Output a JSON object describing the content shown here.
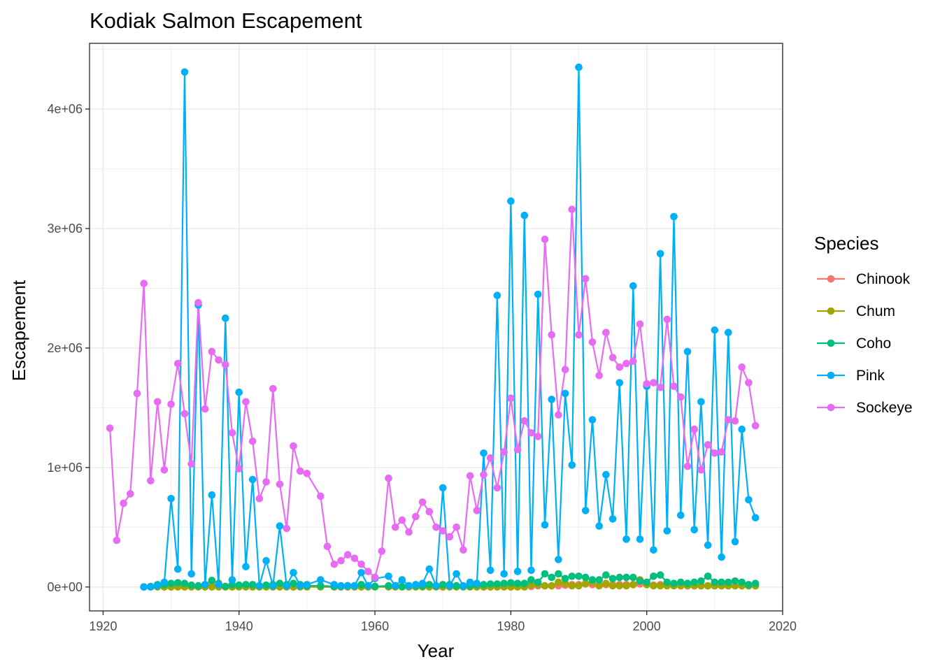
{
  "chart_data": {
    "type": "line",
    "title": "Kodiak Salmon Escapement",
    "xlabel": "Year",
    "ylabel": "Escapement",
    "xlim": [
      1918,
      2020
    ],
    "ylim": [
      -200000,
      4550000
    ],
    "x_ticks": [
      1920,
      1940,
      1960,
      1980,
      2000,
      2020
    ],
    "x_tick_labels": [
      "1920",
      "1940",
      "1960",
      "1980",
      "2000",
      "2020"
    ],
    "y_ticks": [
      0,
      1000000,
      2000000,
      3000000,
      4000000
    ],
    "y_tick_labels": [
      "0e+00",
      "1e+06",
      "2e+06",
      "3e+06",
      "4e+06"
    ],
    "grid": true,
    "markers": true,
    "legend": {
      "title": "Species",
      "placement": "right"
    },
    "series": [
      {
        "name": "Chinook",
        "color": "#F8766D",
        "x": [
          1926,
          1927,
          1928,
          1929,
          1930,
          1931,
          1932,
          1933,
          1934,
          1935,
          1936,
          1937,
          1938,
          1939,
          1940,
          1941,
          1942,
          1943,
          1944,
          1945,
          1946,
          1947,
          1948,
          1949,
          1950,
          1952,
          1954,
          1955,
          1956,
          1957,
          1958,
          1959,
          1960,
          1962,
          1963,
          1964,
          1965,
          1966,
          1967,
          1968,
          1969,
          1970,
          1971,
          1972,
          1973,
          1974,
          1975,
          1976,
          1977,
          1978,
          1979,
          1980,
          1981,
          1982,
          1983,
          1984,
          1985,
          1986,
          1987,
          1988,
          1989,
          1990,
          1991,
          1992,
          1993,
          1994,
          1995,
          1996,
          1997,
          1998,
          1999,
          2000,
          2001,
          2002,
          2003,
          2004,
          2005,
          2006,
          2007,
          2008,
          2009,
          2010,
          2011,
          2012,
          2013,
          2014,
          2015,
          2016
        ],
        "y": [
          0,
          1000,
          10000,
          5000,
          5000,
          5000,
          5000,
          5000,
          5000,
          5000,
          10000,
          5000,
          5000,
          10000,
          10000,
          10000,
          10000,
          5000,
          5000,
          5000,
          5000,
          5000,
          5000,
          5000,
          5000,
          5000,
          5000,
          5000,
          5000,
          5000,
          5000,
          5000,
          5000,
          5000,
          5000,
          5000,
          5000,
          5000,
          5000,
          5000,
          5000,
          5000,
          5000,
          5000,
          5000,
          5000,
          5000,
          5000,
          5000,
          5000,
          5000,
          5000,
          5000,
          5000,
          5000,
          10000,
          10000,
          10000,
          10000,
          15000,
          20000,
          20000,
          25000,
          20000,
          15000,
          20000,
          20000,
          20000,
          20000,
          20000,
          25000,
          20000,
          15000,
          20000,
          15000,
          15000,
          10000,
          10000,
          10000,
          10000,
          10000,
          10000,
          10000,
          10000,
          10000,
          10000,
          10000,
          10000
        ]
      },
      {
        "name": "Chum",
        "color": "#A3A500",
        "x": [
          1926,
          1927,
          1928,
          1929,
          1930,
          1931,
          1932,
          1933,
          1934,
          1935,
          1936,
          1937,
          1938,
          1939,
          1940,
          1941,
          1942,
          1943,
          1944,
          1945,
          1946,
          1947,
          1948,
          1949,
          1950,
          1952,
          1954,
          1955,
          1956,
          1957,
          1958,
          1959,
          1960,
          1962,
          1963,
          1964,
          1965,
          1966,
          1967,
          1968,
          1969,
          1970,
          1971,
          1972,
          1973,
          1974,
          1975,
          1976,
          1977,
          1978,
          1979,
          1980,
          1981,
          1982,
          1983,
          1984,
          1985,
          1986,
          1987,
          1988,
          1989,
          1990,
          1991,
          1992,
          1993,
          1994,
          1995,
          1996,
          1997,
          1998,
          1999,
          2000,
          2001,
          2002,
          2003,
          2004,
          2005,
          2006,
          2007,
          2008,
          2009,
          2010,
          2011,
          2012,
          2013,
          2014,
          2015,
          2016
        ],
        "y": [
          0,
          0,
          0,
          0,
          0,
          0,
          0,
          0,
          0,
          0,
          0,
          0,
          0,
          0,
          0,
          0,
          0,
          0,
          0,
          0,
          0,
          0,
          0,
          0,
          0,
          0,
          0,
          0,
          0,
          0,
          0,
          0,
          0,
          0,
          0,
          0,
          0,
          0,
          0,
          0,
          0,
          0,
          0,
          0,
          0,
          0,
          0,
          0,
          0,
          0,
          0,
          0,
          0,
          0,
          20000,
          20000,
          10000,
          10000,
          40000,
          30000,
          10000,
          10000,
          30000,
          40000,
          10000,
          30000,
          10000,
          10000,
          10000,
          20000,
          60000,
          20000,
          10000,
          10000,
          10000,
          10000,
          10000,
          10000,
          10000,
          10000,
          10000,
          10000,
          10000,
          10000,
          10000,
          10000,
          10000,
          10000
        ]
      },
      {
        "name": "Coho",
        "color": "#00BF7D",
        "x": [
          1926,
          1927,
          1928,
          1929,
          1930,
          1931,
          1932,
          1933,
          1934,
          1935,
          1936,
          1937,
          1938,
          1939,
          1940,
          1941,
          1942,
          1943,
          1944,
          1945,
          1946,
          1947,
          1948,
          1949,
          1950,
          1952,
          1954,
          1955,
          1956,
          1957,
          1958,
          1959,
          1960,
          1962,
          1963,
          1964,
          1965,
          1966,
          1967,
          1968,
          1969,
          1970,
          1971,
          1972,
          1973,
          1974,
          1975,
          1976,
          1977,
          1978,
          1979,
          1980,
          1981,
          1982,
          1983,
          1984,
          1985,
          1986,
          1987,
          1988,
          1989,
          1990,
          1991,
          1992,
          1993,
          1994,
          1995,
          1996,
          1997,
          1998,
          1999,
          2000,
          2001,
          2002,
          2003,
          2004,
          2005,
          2006,
          2007,
          2008,
          2009,
          2010,
          2011,
          2012,
          2013,
          2014,
          2015,
          2016
        ],
        "y": [
          0,
          5000,
          20000,
          20000,
          30000,
          35000,
          30000,
          15000,
          10000,
          20000,
          55000,
          30000,
          5000,
          20000,
          15000,
          20000,
          20000,
          10000,
          15000,
          20000,
          30000,
          20000,
          30000,
          20000,
          10000,
          10000,
          5000,
          5000,
          10000,
          10000,
          20000,
          10000,
          5000,
          10000,
          10000,
          5000,
          10000,
          10000,
          10000,
          20000,
          10000,
          20000,
          20000,
          10000,
          5000,
          10000,
          20000,
          20000,
          25000,
          25000,
          30000,
          35000,
          30000,
          30000,
          60000,
          40000,
          110000,
          80000,
          110000,
          70000,
          90000,
          90000,
          80000,
          60000,
          60000,
          100000,
          70000,
          80000,
          80000,
          80000,
          50000,
          40000,
          90000,
          100000,
          40000,
          30000,
          40000,
          30000,
          40000,
          50000,
          90000,
          40000,
          40000,
          40000,
          50000,
          40000,
          20000,
          30000
        ]
      },
      {
        "name": "Pink",
        "color": "#00B0F6",
        "x": [
          1926,
          1927,
          1928,
          1929,
          1930,
          1931,
          1932,
          1933,
          1934,
          1935,
          1936,
          1937,
          1938,
          1939,
          1940,
          1941,
          1942,
          1943,
          1944,
          1945,
          1946,
          1947,
          1948,
          1949,
          1950,
          1952,
          1954,
          1955,
          1956,
          1957,
          1958,
          1959,
          1960,
          1962,
          1963,
          1964,
          1965,
          1966,
          1967,
          1968,
          1969,
          1970,
          1971,
          1972,
          1973,
          1974,
          1975,
          1976,
          1977,
          1978,
          1979,
          1980,
          1981,
          1982,
          1983,
          1984,
          1985,
          1986,
          1987,
          1988,
          1989,
          1990,
          1991,
          1992,
          1993,
          1994,
          1995,
          1996,
          1997,
          1998,
          1999,
          2000,
          2001,
          2002,
          2003,
          2004,
          2005,
          2006,
          2007,
          2008,
          2009,
          2010,
          2011,
          2012,
          2013,
          2014,
          2015,
          2016
        ],
        "y": [
          0,
          0,
          10000,
          40000,
          740000,
          150000,
          4310000,
          110000,
          2360000,
          20000,
          770000,
          20000,
          2250000,
          60000,
          1630000,
          170000,
          900000,
          10000,
          220000,
          10000,
          510000,
          10000,
          120000,
          10000,
          20000,
          60000,
          20000,
          10000,
          10000,
          10000,
          120000,
          10000,
          70000,
          90000,
          10000,
          60000,
          10000,
          20000,
          30000,
          150000,
          10000,
          830000,
          10000,
          110000,
          10000,
          40000,
          30000,
          1120000,
          140000,
          2440000,
          110000,
          3230000,
          130000,
          3110000,
          140000,
          2450000,
          520000,
          1570000,
          230000,
          1620000,
          1020000,
          4350000,
          640000,
          1400000,
          510000,
          940000,
          570000,
          1710000,
          400000,
          2520000,
          400000,
          1680000,
          310000,
          2790000,
          470000,
          3100000,
          600000,
          1970000,
          480000,
          1550000,
          350000,
          2150000,
          250000,
          2130000,
          380000,
          1320000,
          730000,
          580000
        ]
      },
      {
        "name": "Sockeye",
        "color": "#E76BF3",
        "x": [
          1921,
          1922,
          1923,
          1924,
          1925,
          1926,
          1927,
          1928,
          1929,
          1930,
          1931,
          1932,
          1933,
          1934,
          1935,
          1936,
          1937,
          1938,
          1939,
          1940,
          1941,
          1942,
          1943,
          1944,
          1945,
          1946,
          1947,
          1948,
          1949,
          1950,
          1952,
          1953,
          1954,
          1955,
          1956,
          1957,
          1958,
          1959,
          1960,
          1961,
          1962,
          1963,
          1964,
          1965,
          1966,
          1967,
          1968,
          1969,
          1970,
          1971,
          1972,
          1973,
          1974,
          1975,
          1976,
          1977,
          1978,
          1979,
          1980,
          1981,
          1982,
          1983,
          1984,
          1985,
          1986,
          1987,
          1988,
          1989,
          1990,
          1991,
          1992,
          1993,
          1994,
          1995,
          1996,
          1997,
          1998,
          1999,
          2000,
          2001,
          2002,
          2003,
          2004,
          2005,
          2006,
          2007,
          2008,
          2009,
          2010,
          2011,
          2012,
          2013,
          2014,
          2015,
          2016
        ],
        "y": [
          1330000,
          390000,
          700000,
          780000,
          1620000,
          2540000,
          890000,
          1550000,
          980000,
          1530000,
          1870000,
          1450000,
          1030000,
          2380000,
          1490000,
          1970000,
          1900000,
          1860000,
          1290000,
          990000,
          1550000,
          1220000,
          740000,
          880000,
          1660000,
          860000,
          490000,
          1180000,
          970000,
          950000,
          760000,
          340000,
          190000,
          220000,
          270000,
          240000,
          190000,
          130000,
          80000,
          300000,
          910000,
          500000,
          560000,
          460000,
          590000,
          710000,
          630000,
          500000,
          470000,
          420000,
          500000,
          310000,
          930000,
          640000,
          940000,
          1080000,
          830000,
          1130000,
          1580000,
          1150000,
          1390000,
          1290000,
          1260000,
          2910000,
          2110000,
          1440000,
          1820000,
          3160000,
          2110000,
          2580000,
          2050000,
          1770000,
          2130000,
          1920000,
          1840000,
          1870000,
          1890000,
          2200000,
          1700000,
          1710000,
          1670000,
          2240000,
          1680000,
          1590000,
          1010000,
          1320000,
          980000,
          1190000,
          1120000,
          1130000,
          1400000,
          1390000,
          1840000,
          1710000,
          1350000
        ]
      }
    ]
  }
}
